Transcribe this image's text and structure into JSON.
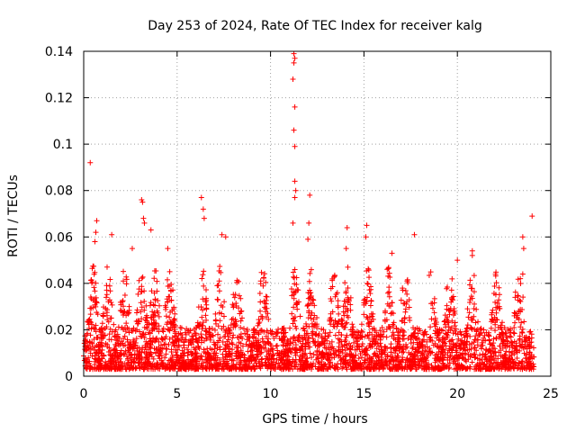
{
  "chart_data": {
    "type": "scatter",
    "title": "Day 253 of 2024, Rate Of TEC Index for receiver kalg",
    "xlabel": "GPS time / hours",
    "ylabel": "ROTI / TECUs",
    "xlim": [
      0,
      25
    ],
    "ylim": [
      0,
      0.14
    ],
    "grid": true,
    "marker": "+",
    "color": "#ff0000",
    "x_ticks": [
      "0",
      "5",
      "10",
      "15",
      "20",
      "25"
    ],
    "y_ticks": [
      "0",
      "0.02",
      "0.04",
      "0.06",
      "0.08",
      "0.1",
      "0.12",
      "0.14"
    ],
    "series": [
      {
        "name": "ROTI",
        "note": "dense band of roughly 0.003-0.03 TECU/s across 0-24 h; notable outliers listed",
        "outliers": [
          [
            0.35,
            0.092
          ],
          [
            0.7,
            0.067
          ],
          [
            0.65,
            0.062
          ],
          [
            0.6,
            0.058
          ],
          [
            1.5,
            0.061
          ],
          [
            2.6,
            0.055
          ],
          [
            3.1,
            0.076
          ],
          [
            3.15,
            0.075
          ],
          [
            3.2,
            0.068
          ],
          [
            3.25,
            0.066
          ],
          [
            3.6,
            0.063
          ],
          [
            4.5,
            0.055
          ],
          [
            6.3,
            0.077
          ],
          [
            6.4,
            0.072
          ],
          [
            6.45,
            0.068
          ],
          [
            7.4,
            0.061
          ],
          [
            7.6,
            0.06
          ],
          [
            11.25,
            0.139
          ],
          [
            11.3,
            0.137
          ],
          [
            11.25,
            0.135
          ],
          [
            11.2,
            0.128
          ],
          [
            11.3,
            0.116
          ],
          [
            11.25,
            0.106
          ],
          [
            11.3,
            0.099
          ],
          [
            11.3,
            0.084
          ],
          [
            11.35,
            0.08
          ],
          [
            11.3,
            0.077
          ],
          [
            11.2,
            0.066
          ],
          [
            12.1,
            0.078
          ],
          [
            12.05,
            0.066
          ],
          [
            12.0,
            0.059
          ],
          [
            14.1,
            0.064
          ],
          [
            14.05,
            0.055
          ],
          [
            15.15,
            0.065
          ],
          [
            15.1,
            0.06
          ],
          [
            17.7,
            0.061
          ],
          [
            16.5,
            0.053
          ],
          [
            20.8,
            0.054
          ],
          [
            20.8,
            0.052
          ],
          [
            20.0,
            0.05
          ],
          [
            23.5,
            0.06
          ],
          [
            23.55,
            0.055
          ],
          [
            24.0,
            0.069
          ],
          [
            23.5,
            0.044
          ]
        ]
      }
    ]
  }
}
